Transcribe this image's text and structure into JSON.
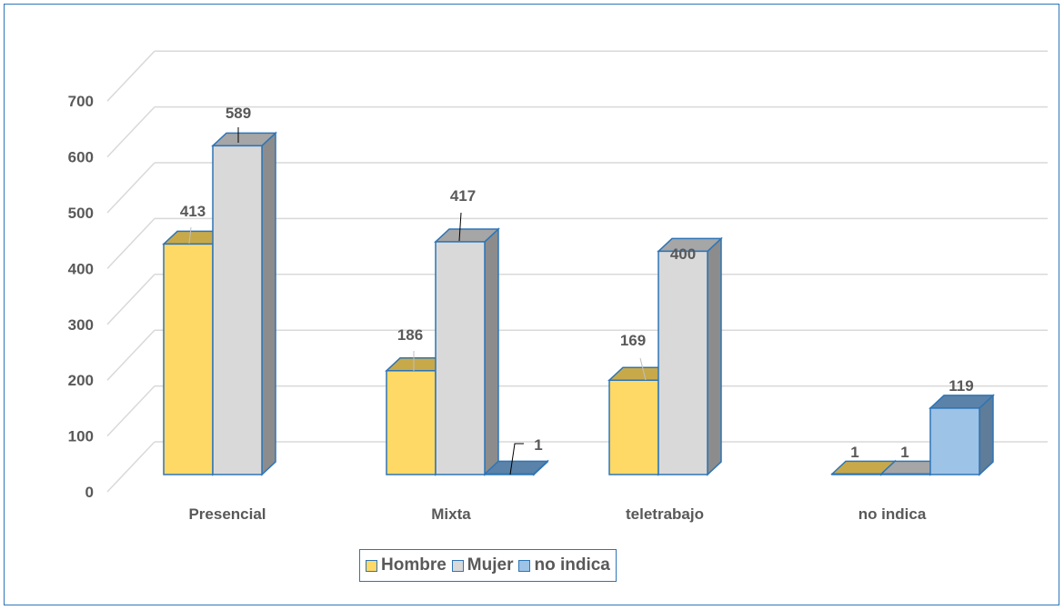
{
  "chart_data": {
    "type": "bar",
    "categories": [
      "Presencial",
      "Mixta",
      "teletrabajo",
      "no indica"
    ],
    "series": [
      {
        "name": "Hombre",
        "values": [
          413,
          186,
          169,
          1
        ],
        "color": "#ffd966",
        "top": "#c8a94a",
        "side": "#7f7f7f"
      },
      {
        "name": "Mujer",
        "values": [
          589,
          417,
          400,
          1
        ],
        "color": "#d9d9d9",
        "top": "#a6a6a6",
        "side": "#8c8c8c"
      },
      {
        "name": "no indica",
        "values": [
          null,
          1,
          null,
          119
        ],
        "color": "#9dc3e6",
        "top": "#5b82a8",
        "side": "#5f7c99"
      }
    ],
    "data_labels": [
      [
        "413",
        "589",
        ""
      ],
      [
        "186",
        "417",
        "1"
      ],
      [
        "169",
        "400",
        ""
      ],
      [
        "1",
        "1",
        "119"
      ]
    ],
    "yticks": [
      "0",
      "100",
      "200",
      "300",
      "400",
      "500",
      "600",
      "700"
    ],
    "ylim": [
      0,
      700
    ],
    "grid": true,
    "legend_position": "bottom",
    "edge_color": "#2e75b6"
  }
}
